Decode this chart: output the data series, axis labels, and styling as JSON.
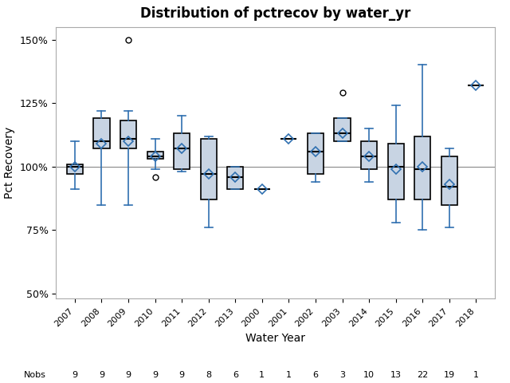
{
  "title": "Distribution of pctrecov by water_yr",
  "xlabel": "Water Year",
  "ylabel": "Pct Recovery",
  "years": [
    "2007",
    "2008",
    "2009",
    "2010",
    "2011",
    "2012",
    "2013",
    "2000",
    "2001",
    "2002",
    "2003",
    "2014",
    "2015",
    "2016",
    "2017",
    "2018"
  ],
  "nobs": [
    9,
    9,
    9,
    9,
    9,
    8,
    6,
    1,
    1,
    6,
    3,
    10,
    13,
    22,
    19,
    1
  ],
  "boxes": [
    {
      "q1": 97,
      "median": 100,
      "q3": 101,
      "whislo": 91,
      "whishi": 110,
      "mean": 100,
      "fliers": []
    },
    {
      "q1": 107,
      "median": 110,
      "q3": 119,
      "whislo": 85,
      "whishi": 122,
      "mean": 109,
      "fliers": []
    },
    {
      "q1": 107,
      "median": 111,
      "q3": 118,
      "whislo": 85,
      "whishi": 122,
      "mean": 110,
      "fliers": [
        150
      ]
    },
    {
      "q1": 103,
      "median": 104,
      "q3": 106,
      "whislo": 99,
      "whishi": 111,
      "mean": 104,
      "fliers": [
        96
      ]
    },
    {
      "q1": 99,
      "median": 107,
      "q3": 113,
      "whislo": 98,
      "whishi": 120,
      "mean": 107,
      "fliers": []
    },
    {
      "q1": 87,
      "median": 97,
      "q3": 111,
      "whislo": 76,
      "whishi": 112,
      "mean": 97,
      "fliers": []
    },
    {
      "q1": 91,
      "median": 96,
      "q3": 100,
      "whislo": 91,
      "whishi": 100,
      "mean": 96,
      "fliers": []
    },
    {
      "q1": 91,
      "median": 91,
      "q3": 91,
      "whislo": 91,
      "whishi": 91,
      "mean": 91,
      "fliers": []
    },
    {
      "q1": 111,
      "median": 111,
      "q3": 111,
      "whislo": 111,
      "whishi": 111,
      "mean": 111,
      "fliers": []
    },
    {
      "q1": 97,
      "median": 106,
      "q3": 113,
      "whislo": 94,
      "whishi": 113,
      "mean": 106,
      "fliers": []
    },
    {
      "q1": 110,
      "median": 113,
      "q3": 119,
      "whislo": 110,
      "whishi": 119,
      "mean": 113,
      "fliers": [
        129
      ]
    },
    {
      "q1": 99,
      "median": 104,
      "q3": 110,
      "whislo": 94,
      "whishi": 115,
      "mean": 104,
      "fliers": []
    },
    {
      "q1": 87,
      "median": 100,
      "q3": 109,
      "whislo": 78,
      "whishi": 124,
      "mean": 99,
      "fliers": []
    },
    {
      "q1": 87,
      "median": 99,
      "q3": 112,
      "whislo": 75,
      "whishi": 140,
      "mean": 100,
      "fliers": []
    },
    {
      "q1": 85,
      "median": 92,
      "q3": 104,
      "whislo": 76,
      "whishi": 107,
      "mean": 93,
      "fliers": []
    },
    {
      "q1": 132,
      "median": 132,
      "q3": 132,
      "whislo": 132,
      "whishi": 132,
      "mean": 132,
      "fliers": []
    }
  ],
  "ylim": [
    48,
    155
  ],
  "yticks": [
    50,
    75,
    100,
    125,
    150
  ],
  "ytick_labels": [
    "50%",
    "75%",
    "100%",
    "125%",
    "150%"
  ],
  "box_facecolor": "#c8d4e3",
  "box_edgecolor": "#000000",
  "whisker_color": "#3070b0",
  "median_color": "#000000",
  "mean_color": "#3070b0",
  "flier_color": "#000000",
  "hline_y": 100,
  "hline_color": "#888888",
  "background_color": "#ffffff",
  "nobs_label": "Nobs"
}
